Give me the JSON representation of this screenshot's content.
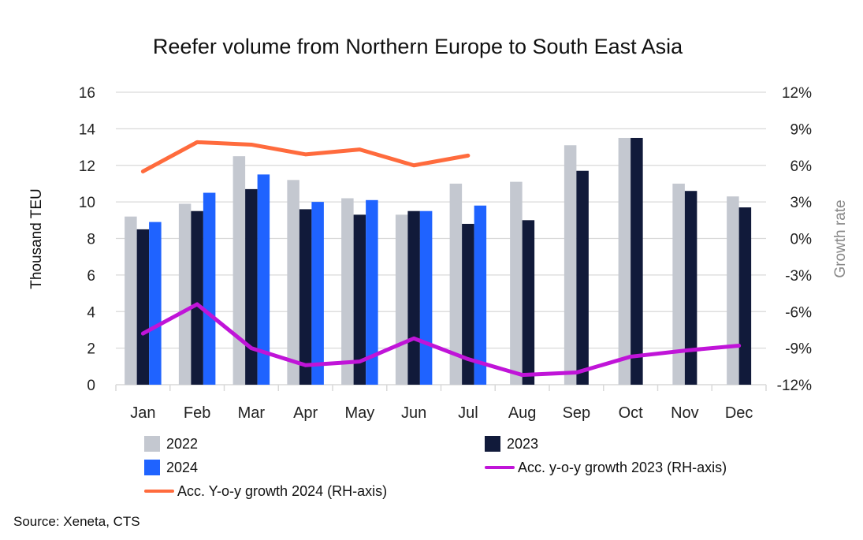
{
  "chart_data": {
    "type": "bar+line",
    "title": "Reefer volume from Northern Europe to South East Asia",
    "ylabel": "Thousand TEU",
    "y2label": "Growth rate",
    "ylim": [
      0,
      16
    ],
    "y2lim": [
      -12,
      12
    ],
    "yticks": [
      "0",
      "2",
      "4",
      "6",
      "8",
      "10",
      "12",
      "14",
      "16"
    ],
    "y2ticks": [
      "-12%",
      "-9%",
      "-6%",
      "-3%",
      "0%",
      "3%",
      "6%",
      "9%",
      "12%"
    ],
    "grid": true,
    "legend_position": "bottom",
    "categories": [
      "Jan",
      "Feb",
      "Mar",
      "Apr",
      "May",
      "Jun",
      "Jul",
      "Aug",
      "Sep",
      "Oct",
      "Nov",
      "Dec"
    ],
    "series": [
      {
        "name": "2022",
        "type": "bar",
        "axis": "left",
        "color": "#c4c8d0",
        "values": [
          9.2,
          9.9,
          12.5,
          11.2,
          10.2,
          9.3,
          11.0,
          11.1,
          13.1,
          13.5,
          11.0,
          10.3
        ]
      },
      {
        "name": "2023",
        "type": "bar",
        "axis": "left",
        "color": "#111a3a",
        "values": [
          8.5,
          9.5,
          10.7,
          9.6,
          9.3,
          9.5,
          8.8,
          9.0,
          11.7,
          13.5,
          10.6,
          9.7
        ]
      },
      {
        "name": "2024",
        "type": "bar",
        "axis": "left",
        "color": "#1f63ff",
        "values": [
          8.9,
          10.5,
          11.5,
          10.0,
          10.1,
          9.5,
          9.8,
          null,
          null,
          null,
          null,
          null
        ]
      },
      {
        "name": "Acc. y-o-y growth 2023 (RH-axis)",
        "type": "line",
        "axis": "right",
        "color": "#c014d8",
        "values": [
          -7.8,
          -5.4,
          -9.0,
          -10.4,
          -10.1,
          -8.2,
          -9.9,
          -11.2,
          -11.0,
          -9.7,
          -9.2,
          -8.8
        ]
      },
      {
        "name": "Acc. Y-o-y growth 2024 (RH-axis)",
        "type": "line",
        "axis": "right",
        "color": "#ff6b3d",
        "values": [
          5.5,
          7.9,
          7.7,
          6.9,
          7.3,
          6.0,
          6.8,
          null,
          null,
          null,
          null,
          null
        ]
      }
    ]
  },
  "source": "Source: Xeneta, CTS"
}
